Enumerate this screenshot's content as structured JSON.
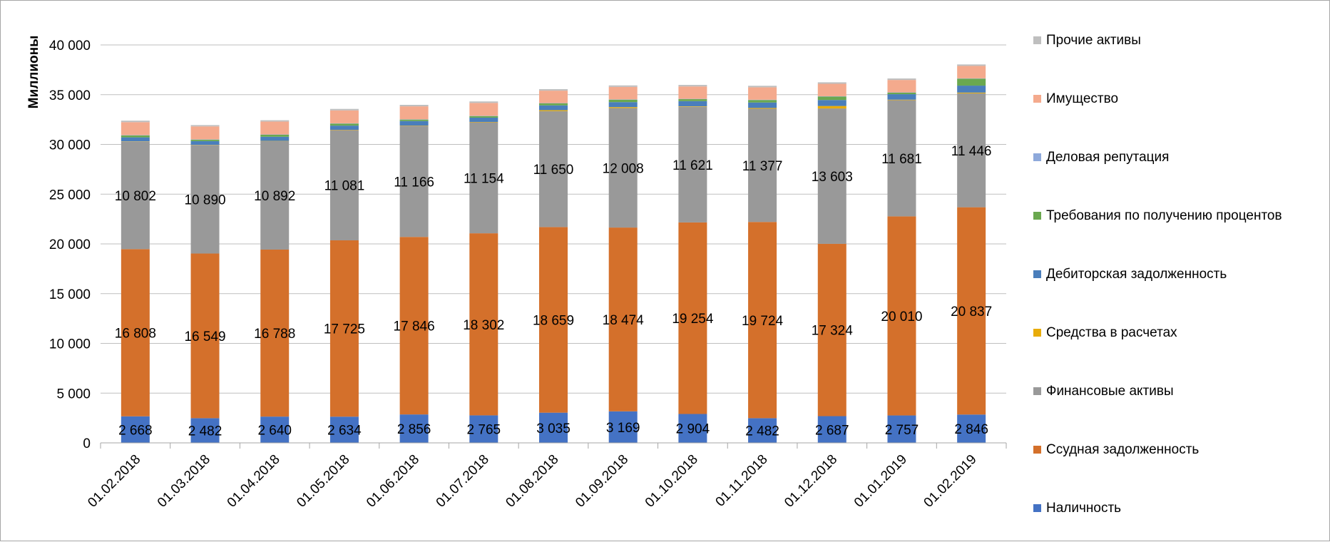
{
  "chart_data": {
    "type": "bar",
    "stacked": true,
    "ylabel": "Миллионы",
    "ylim": [
      0,
      40000
    ],
    "ytick_values": [
      0,
      5000,
      10000,
      15000,
      20000,
      25000,
      30000,
      35000,
      40000
    ],
    "ytick_labels": [
      "0",
      "5 000",
      "10 000",
      "15 000",
      "20 000",
      "25 000",
      "30 000",
      "35 000",
      "40 000"
    ],
    "grid": true,
    "legend_position": "right",
    "categories": [
      "01.02.2018",
      "01.03.2018",
      "01.04.2018",
      "01.05.2018",
      "01.06.2018",
      "01.07.2018",
      "01.08.2018",
      "01.09.2018",
      "01.10.2018",
      "01.11.2018",
      "01.12.2018",
      "01.01.2019",
      "01.02.2019"
    ],
    "series": [
      {
        "name": "Наличность",
        "color": "#4472c4",
        "show_labels": true,
        "values": [
          2668,
          2482,
          2640,
          2634,
          2856,
          2765,
          3035,
          3169,
          2904,
          2482,
          2687,
          2757,
          2846
        ],
        "labels": [
          "2 668",
          "2 482",
          "2 640",
          "2 634",
          "2 856",
          "2 765",
          "3 035",
          "3 169",
          "2 904",
          "2 482",
          "2 687",
          "2 757",
          "2 846"
        ]
      },
      {
        "name": "Ссудная задолженность",
        "color": "#d4702b",
        "show_labels": true,
        "values": [
          16808,
          16549,
          16788,
          17725,
          17846,
          18302,
          18659,
          18474,
          19254,
          19724,
          17324,
          20010,
          20837
        ],
        "labels": [
          "16 808",
          "16 549",
          "16 788",
          "17 725",
          "17 846",
          "18 302",
          "18 659",
          "18 474",
          "19 254",
          "19 724",
          "17 324",
          "20 010",
          "20 837"
        ]
      },
      {
        "name": "Финансовые активы",
        "color": "#999999",
        "show_labels": true,
        "values": [
          10802,
          10890,
          10892,
          11081,
          11166,
          11154,
          11650,
          12008,
          11621,
          11377,
          13603,
          11681,
          11446
        ],
        "labels": [
          "10 802",
          "10 890",
          "10 892",
          "11 081",
          "11 166",
          "11 154",
          "11 650",
          "12 008",
          "11 621",
          "11 377",
          "13 603",
          "11 681",
          "11 446"
        ]
      },
      {
        "name": "Средства в расчетах",
        "color": "#e8ac0a",
        "show_labels": false,
        "values": [
          30,
          30,
          30,
          30,
          30,
          40,
          100,
          100,
          50,
          80,
          250,
          50,
          80
        ]
      },
      {
        "name": "Дебиторская задолженность",
        "color": "#4a7ebb",
        "show_labels": false,
        "values": [
          400,
          380,
          420,
          420,
          450,
          430,
          480,
          500,
          520,
          550,
          600,
          550,
          700
        ]
      },
      {
        "name": "Требования по получению процентов",
        "color": "#6aa84f",
        "show_labels": false,
        "values": [
          200,
          150,
          200,
          200,
          150,
          150,
          200,
          250,
          200,
          250,
          350,
          150,
          700
        ]
      },
      {
        "name": "Деловая репутация",
        "color": "#8ea9db",
        "show_labels": false,
        "values": [
          30,
          30,
          30,
          30,
          30,
          30,
          30,
          30,
          30,
          30,
          30,
          30,
          30
        ]
      },
      {
        "name": "Имущество",
        "color": "#f4aa8d",
        "show_labels": false,
        "values": [
          1300,
          1300,
          1300,
          1300,
          1300,
          1300,
          1250,
          1250,
          1250,
          1250,
          1250,
          1250,
          1250
        ]
      },
      {
        "name": "Прочие активы",
        "color": "#bfbfbf",
        "show_labels": false,
        "values": [
          150,
          130,
          130,
          150,
          150,
          150,
          150,
          150,
          150,
          150,
          150,
          150,
          150
        ]
      }
    ],
    "legend_order": [
      "Прочие активы",
      "Имущество",
      "Деловая репутация",
      "Требования по получению процентов",
      "Дебиторская задолженность",
      "Средства в расчетах",
      "Финансовые активы",
      "Ссудная задолженность",
      "Наличность"
    ]
  }
}
